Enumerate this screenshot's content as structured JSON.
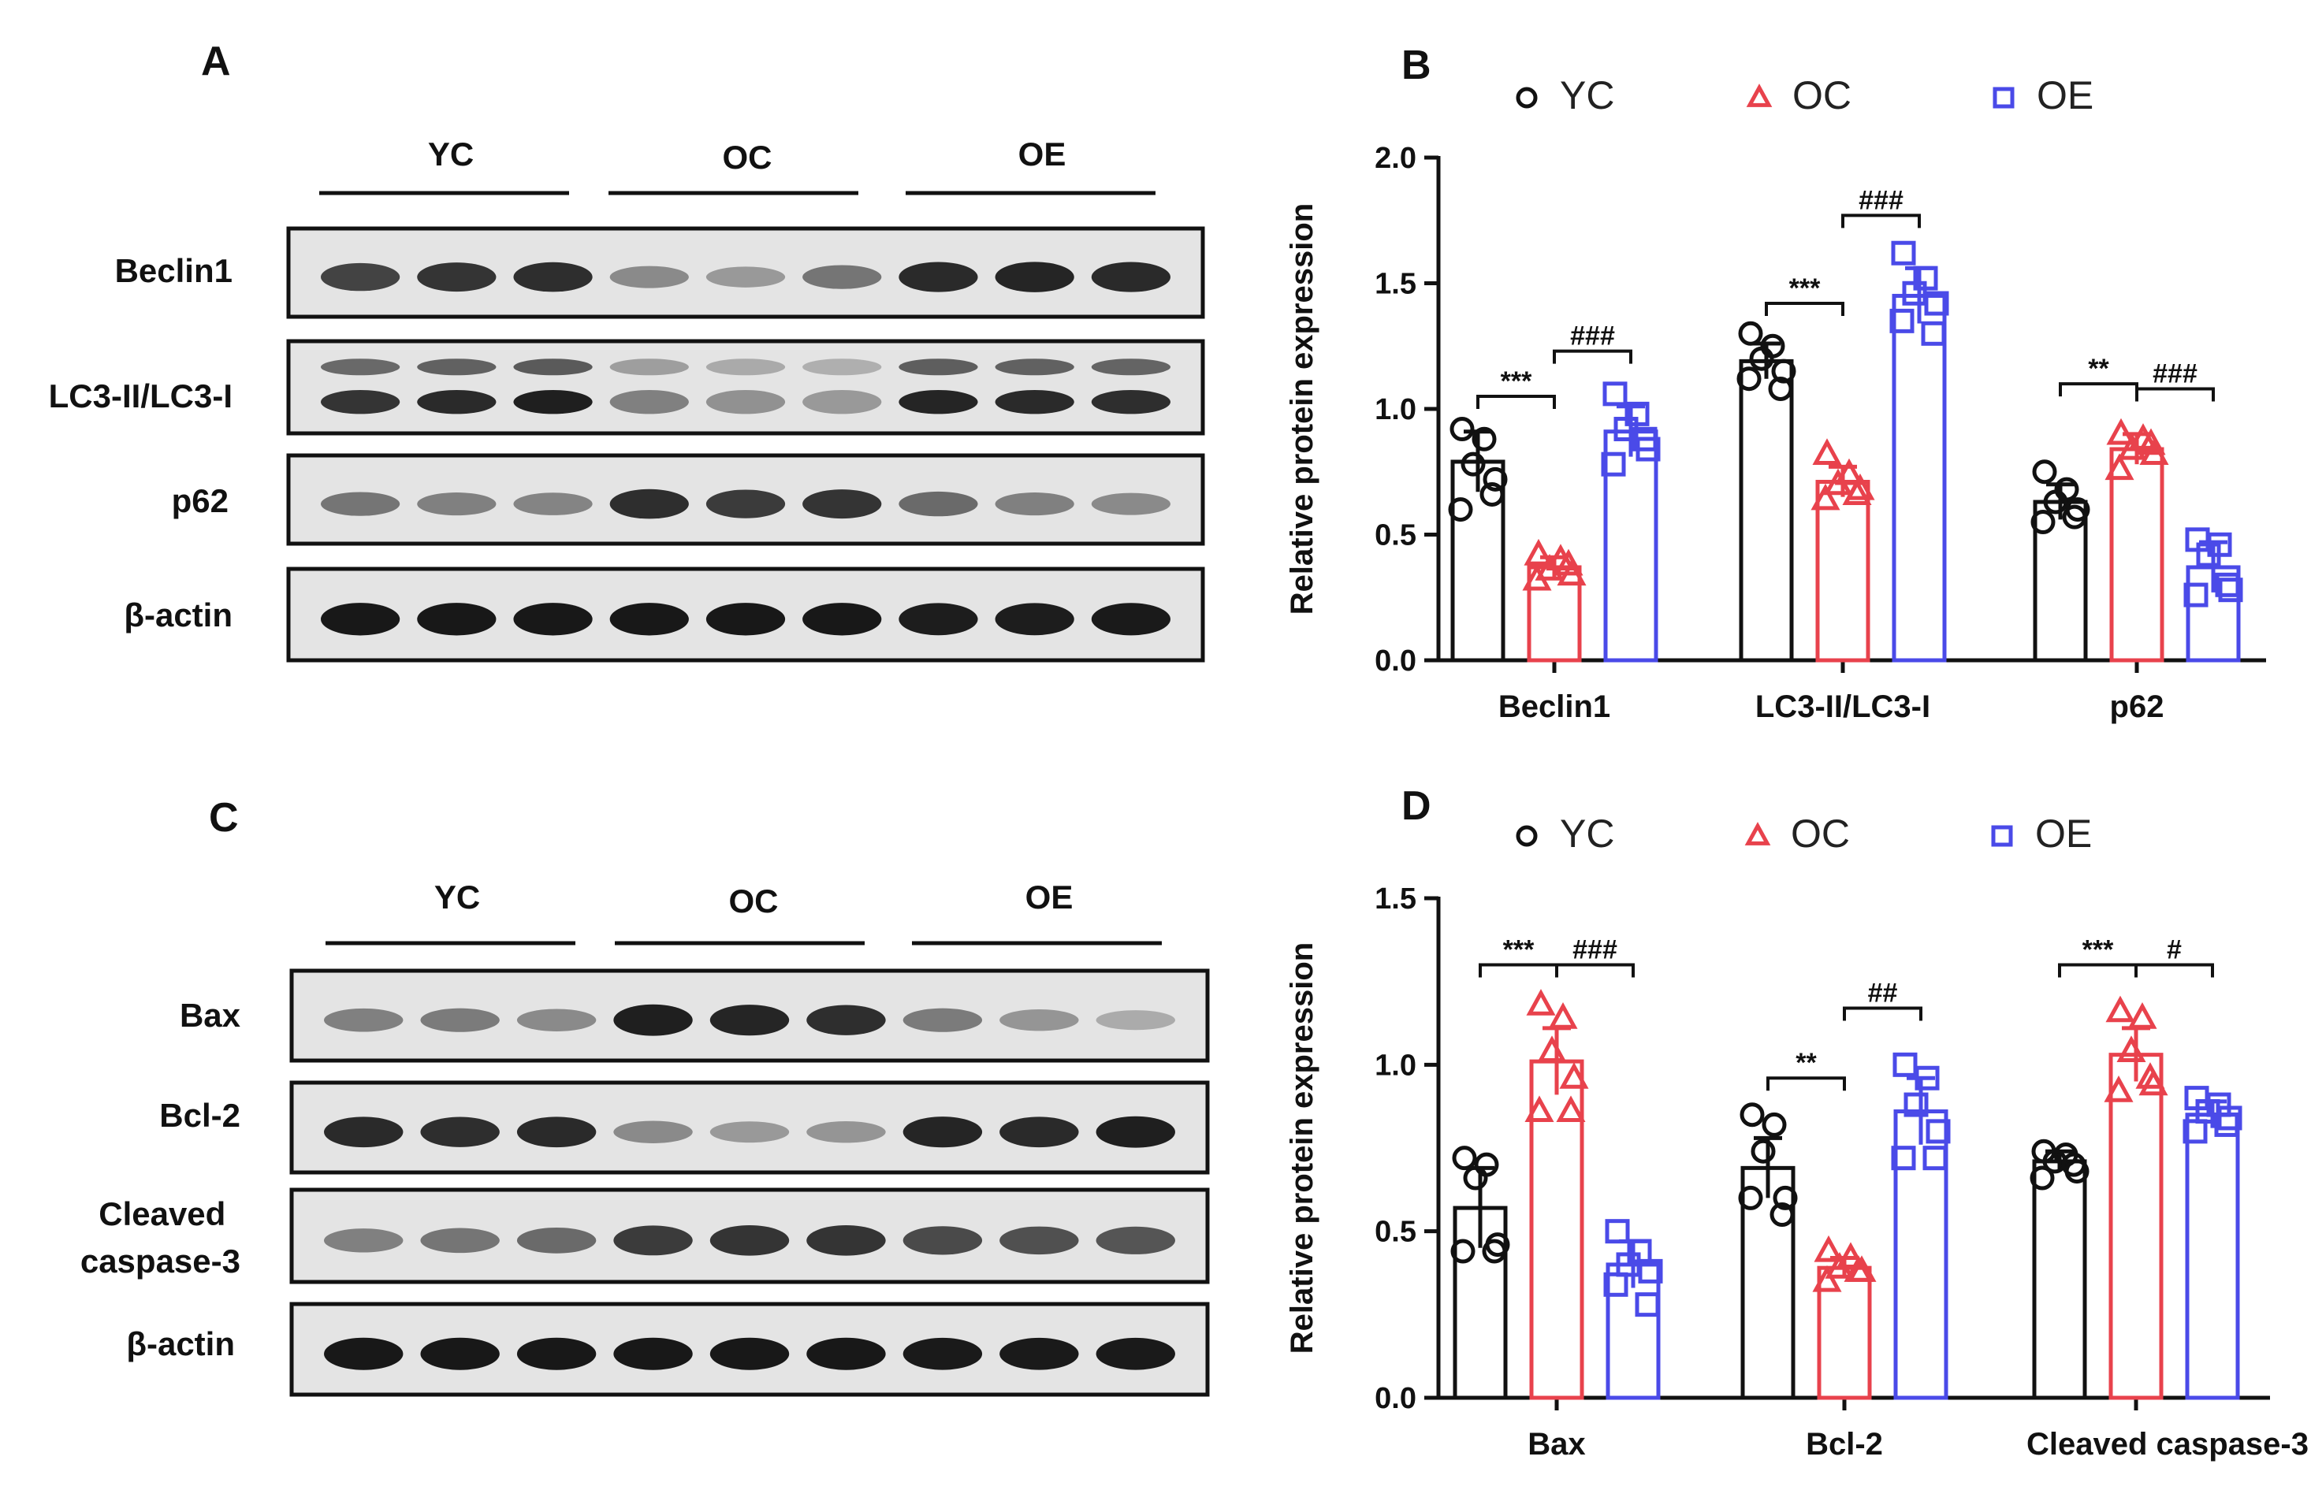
{
  "colors": {
    "YC": "#111111",
    "OC": "#e8424c",
    "OE": "#4a4ae8",
    "text": "#111111"
  },
  "panel_labels": [
    "A",
    "B",
    "C",
    "D"
  ],
  "blots": [
    {
      "groups": [
        "YC",
        "OC",
        "OE"
      ],
      "rows": [
        "Beclin1",
        "LC3-II/LC3-I",
        "p62",
        "β-actin"
      ]
    },
    {
      "groups": [
        "YC",
        "OC",
        "OE"
      ],
      "rows": [
        "Bax",
        "Bcl-2",
        "Cleaved caspase-3",
        "β-actin"
      ]
    }
  ],
  "blot_bands": [
    [
      {
        "kind": "single",
        "intensity": [
          0.78,
          0.85,
          0.88,
          0.45,
          0.38,
          0.55,
          0.9,
          0.92,
          0.9
        ]
      },
      {
        "kind": "double",
        "intensity": [
          0.85,
          0.9,
          0.95,
          0.5,
          0.42,
          0.38,
          0.92,
          0.9,
          0.88
        ]
      },
      {
        "kind": "single",
        "intensity": [
          0.55,
          0.5,
          0.48,
          0.88,
          0.82,
          0.85,
          0.6,
          0.5,
          0.45
        ]
      },
      {
        "kind": "single",
        "intensity": [
          0.98,
          0.98,
          0.98,
          0.98,
          0.98,
          0.98,
          0.96,
          0.96,
          0.97
        ]
      }
    ],
    [
      {
        "kind": "single",
        "intensity": [
          0.5,
          0.52,
          0.45,
          0.95,
          0.92,
          0.88,
          0.52,
          0.4,
          0.3
        ]
      },
      {
        "kind": "single",
        "intensity": [
          0.9,
          0.88,
          0.9,
          0.45,
          0.38,
          0.4,
          0.92,
          0.9,
          0.95
        ]
      },
      {
        "kind": "single",
        "intensity": [
          0.5,
          0.55,
          0.6,
          0.82,
          0.85,
          0.85,
          0.75,
          0.72,
          0.7
        ]
      },
      {
        "kind": "single",
        "intensity": [
          0.98,
          0.98,
          0.98,
          0.98,
          0.98,
          0.98,
          0.97,
          0.97,
          0.97
        ]
      }
    ]
  ],
  "chart_data": [
    {
      "panel": "B",
      "type": "bar",
      "ylabel": "Relative protein expression",
      "ylim": [
        0,
        2.0
      ],
      "yticks": [
        "0.0",
        "0.5",
        "1.0",
        "1.5",
        "2.0"
      ],
      "categories": [
        "Beclin1",
        "LC3-II/LC3-I",
        "p62"
      ],
      "legend": [
        "YC",
        "OC",
        "OE"
      ],
      "series": [
        {
          "name": "YC",
          "marker": "circle",
          "values": [
            0.79,
            1.19,
            0.63
          ],
          "errors": [
            0.12,
            0.07,
            0.07
          ],
          "points": [
            [
              0.92,
              0.88,
              0.78,
              0.72,
              0.6,
              0.66
            ],
            [
              1.3,
              1.25,
              1.2,
              1.15,
              1.12,
              1.08
            ],
            [
              0.75,
              0.68,
              0.63,
              0.6,
              0.55,
              0.57
            ]
          ]
        },
        {
          "name": "OC",
          "marker": "triangle",
          "values": [
            0.37,
            0.71,
            0.84
          ],
          "errors": [
            0.04,
            0.06,
            0.06
          ],
          "points": [
            [
              0.42,
              0.4,
              0.36,
              0.34,
              0.32,
              0.38
            ],
            [
              0.82,
              0.74,
              0.7,
              0.68,
              0.64,
              0.66
            ],
            [
              0.9,
              0.88,
              0.84,
              0.82,
              0.76,
              0.86
            ]
          ]
        },
        {
          "name": "OE",
          "marker": "square",
          "values": [
            0.91,
            1.45,
            0.37
          ],
          "errors": [
            0.1,
            0.11,
            0.1
          ],
          "points": [
            [
              1.06,
              0.98,
              0.92,
              0.84,
              0.78,
              0.88
            ],
            [
              1.62,
              1.52,
              1.46,
              1.42,
              1.35,
              1.3
            ],
            [
              0.48,
              0.46,
              0.42,
              0.28,
              0.26,
              0.3
            ]
          ]
        }
      ],
      "brackets": [
        {
          "category": 0,
          "from": "YC",
          "to": "OC",
          "label": "***",
          "y": 1.05
        },
        {
          "category": 0,
          "from": "OC",
          "to": "OE",
          "label": "###",
          "y": 1.23
        },
        {
          "category": 1,
          "from": "YC",
          "to": "OC",
          "label": "***",
          "y": 1.42
        },
        {
          "category": 1,
          "from": "OC",
          "to": "OE",
          "label": "###",
          "y": 1.77
        },
        {
          "category": 2,
          "from": "YC",
          "to": "OC",
          "label": "**",
          "y": 1.1
        },
        {
          "category": 2,
          "from": "OC",
          "to": "OE",
          "label": "###",
          "y": 1.08
        }
      ]
    },
    {
      "panel": "D",
      "type": "bar",
      "ylabel": "Relative protein expression",
      "ylim": [
        0,
        1.5
      ],
      "yticks": [
        "0.0",
        "0.5",
        "1.0",
        "1.5"
      ],
      "categories": [
        "Bax",
        "Bcl-2",
        "Cleaved caspase-3"
      ],
      "legend": [
        "YC",
        "OC",
        "OE"
      ],
      "series": [
        {
          "name": "YC",
          "marker": "circle",
          "values": [
            0.57,
            0.69,
            0.71
          ],
          "errors": [
            0.12,
            0.09,
            0.03
          ],
          "points": [
            [
              0.72,
              0.7,
              0.66,
              0.46,
              0.44,
              0.44
            ],
            [
              0.85,
              0.82,
              0.74,
              0.6,
              0.6,
              0.55
            ],
            [
              0.74,
              0.73,
              0.71,
              0.68,
              0.66,
              0.7
            ]
          ]
        },
        {
          "name": "OC",
          "marker": "triangle",
          "values": [
            1.01,
            0.39,
            1.03
          ],
          "errors": [
            0.1,
            0.03,
            0.08
          ],
          "points": [
            [
              1.18,
              1.14,
              1.04,
              0.96,
              0.86,
              0.86
            ],
            [
              0.44,
              0.42,
              0.39,
              0.38,
              0.35,
              0.38
            ],
            [
              1.16,
              1.14,
              1.04,
              0.94,
              0.92,
              0.96
            ]
          ]
        },
        {
          "name": "OE",
          "marker": "square",
          "values": [
            0.4,
            0.86,
            0.85
          ],
          "errors": [
            0.07,
            0.1,
            0.04
          ],
          "points": [
            [
              0.5,
              0.44,
              0.4,
              0.38,
              0.34,
              0.28
            ],
            [
              1.0,
              0.96,
              0.88,
              0.8,
              0.72,
              0.72
            ],
            [
              0.9,
              0.88,
              0.86,
              0.84,
              0.8,
              0.82
            ]
          ]
        }
      ],
      "brackets": [
        {
          "category": 0,
          "from": "YC",
          "to": "OC",
          "label": "***",
          "y": 1.3
        },
        {
          "category": 0,
          "from": "OC",
          "to": "OE",
          "label": "###",
          "y": 1.3
        },
        {
          "category": 1,
          "from": "YC",
          "to": "OC",
          "label": "**",
          "y": 0.96
        },
        {
          "category": 1,
          "from": "OC",
          "to": "OE",
          "label": "##",
          "y": 1.17
        },
        {
          "category": 2,
          "from": "YC",
          "to": "OC",
          "label": "***",
          "y": 1.3
        },
        {
          "category": 2,
          "from": "OC",
          "to": "OE",
          "label": "#",
          "y": 1.3
        }
      ]
    }
  ]
}
